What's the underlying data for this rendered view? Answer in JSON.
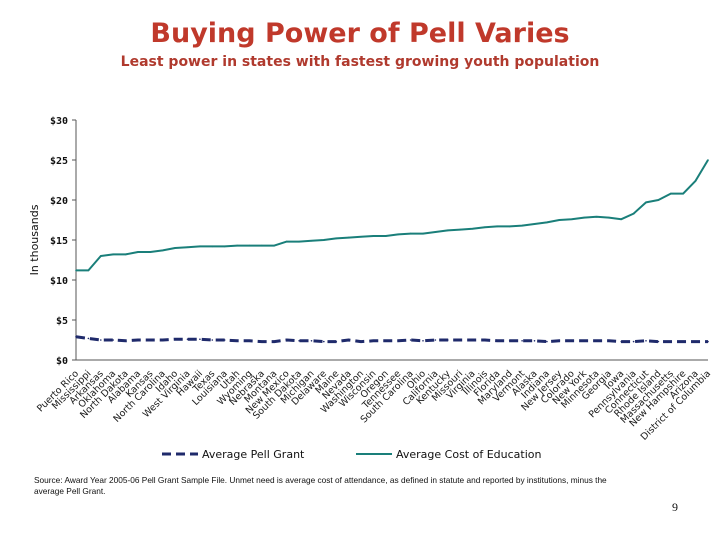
{
  "slide": {
    "title": "Buying Power of Pell Varies",
    "subtitle": "Least power in states with fastest growing youth population",
    "source": "Source: Award Year 2005-06 Pell Grant Sample File. Unmet need is average cost of attendance, as defined in statute and reported by institutions, minus the average Pell Grant.",
    "page_number": "9"
  },
  "colors": {
    "title": "#c0392b",
    "pell_grant": "#1f2a6b",
    "cost_of_education": "#1a7f7a",
    "axis": "#555555"
  },
  "chart_data": {
    "type": "line",
    "title": "Buying Power of Pell Varies",
    "ylabel": "In thousands",
    "xlabel": "",
    "ylim": [
      0,
      30
    ],
    "yticks": [
      "$0",
      "$5",
      "$10",
      "$15",
      "$20",
      "$25",
      "$30"
    ],
    "grid": false,
    "legend_position": "bottom",
    "categories": [
      "Puerto Rico",
      "Mississippi",
      "Arkansas",
      "Oklahoma",
      "North Dakota",
      "Alabama",
      "Kansas",
      "North Carolina",
      "Idaho",
      "West Virginia",
      "Hawaii",
      "Texas",
      "Louisiana",
      "Utah",
      "Wyoming",
      "Nebraska",
      "Montana",
      "New Mexico",
      "South Dakota",
      "Michigan",
      "Delaware",
      "Maine",
      "Nevada",
      "Washington",
      "Wisconsin",
      "Oregon",
      "Tennessee",
      "South Carolina",
      "Ohio",
      "California",
      "Kentucky",
      "Missouri",
      "Virginia",
      "Illinois",
      "Florida",
      "Maryland",
      "Vermont",
      "Alaska",
      "Indiana",
      "New Jersey",
      "Colorado",
      "New York",
      "Minnesota",
      "Georgia",
      "Iowa",
      "Pennsylvania",
      "Connecticut",
      "Rhode Island",
      "Massachusetts",
      "New Hampshire",
      "Arizona",
      "District of Columbia"
    ],
    "series": [
      {
        "name": "Average Pell Grant",
        "style": "dashed",
        "values": [
          2.9,
          2.7,
          2.5,
          2.5,
          2.4,
          2.5,
          2.5,
          2.5,
          2.6,
          2.6,
          2.6,
          2.5,
          2.5,
          2.4,
          2.4,
          2.3,
          2.3,
          2.5,
          2.4,
          2.4,
          2.3,
          2.3,
          2.5,
          2.3,
          2.4,
          2.4,
          2.4,
          2.5,
          2.4,
          2.5,
          2.5,
          2.5,
          2.5,
          2.5,
          2.4,
          2.4,
          2.4,
          2.4,
          2.3,
          2.4,
          2.4,
          2.4,
          2.4,
          2.4,
          2.3,
          2.3,
          2.4,
          2.3,
          2.3,
          2.3,
          2.3,
          2.3
        ]
      },
      {
        "name": "Average Cost of Education",
        "style": "solid",
        "values": [
          11.2,
          11.2,
          13.0,
          13.2,
          13.2,
          13.5,
          13.5,
          13.7,
          14.0,
          14.1,
          14.2,
          14.2,
          14.2,
          14.3,
          14.3,
          14.3,
          14.3,
          14.8,
          14.8,
          14.9,
          15.0,
          15.2,
          15.3,
          15.4,
          15.5,
          15.5,
          15.7,
          15.8,
          15.8,
          16.0,
          16.2,
          16.3,
          16.4,
          16.6,
          16.7,
          16.7,
          16.8,
          17.0,
          17.2,
          17.5,
          17.6,
          17.8,
          17.9,
          17.8,
          17.6,
          18.3,
          19.7,
          20.0,
          20.8,
          20.8,
          22.4,
          25.0
        ]
      }
    ]
  }
}
